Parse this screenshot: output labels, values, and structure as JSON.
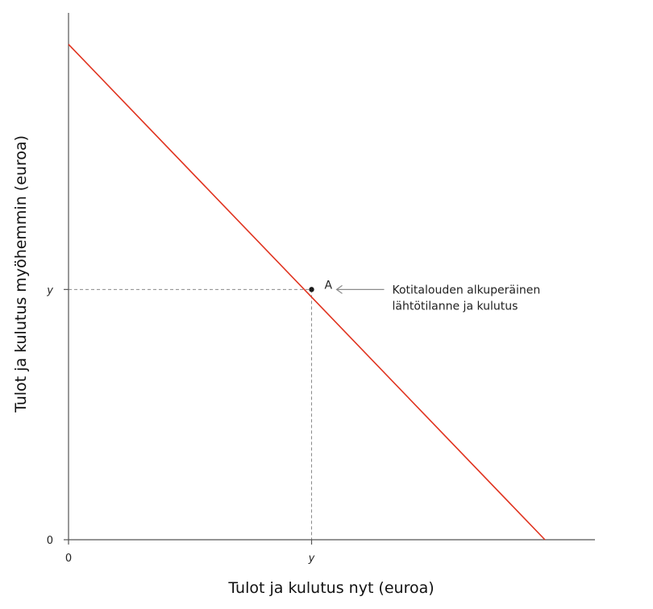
{
  "chart_data": {
    "type": "line",
    "title": "",
    "xlabel": "Tulot ja kulutus nyt (euroa)",
    "ylabel": "Tulot ja kulutus myöhemmin (euroa)",
    "xlim": [
      0,
      100
    ],
    "ylim": [
      0,
      100
    ],
    "x_ticks": [
      {
        "value": 0,
        "label": "0"
      },
      {
        "value": 50,
        "label": "y"
      }
    ],
    "y_ticks": [
      {
        "value": 0,
        "label": "0"
      },
      {
        "value": 49,
        "label": "y"
      }
    ],
    "series": [
      {
        "x": [
          0,
          98
        ],
        "y": [
          97,
          0
        ],
        "color": "#e0321e"
      }
    ],
    "points": [
      {
        "label": "A",
        "x": 50,
        "y": 49
      }
    ],
    "annotations": [
      {
        "target": "A",
        "lines": [
          "Kotitalouden alkuperäinen",
          "lähtötilanne ja kulutus"
        ]
      }
    ],
    "grid": false
  },
  "colors": {
    "budget_line": "#e0321e",
    "axis": "#555555",
    "guides": "#8a8a8a"
  }
}
